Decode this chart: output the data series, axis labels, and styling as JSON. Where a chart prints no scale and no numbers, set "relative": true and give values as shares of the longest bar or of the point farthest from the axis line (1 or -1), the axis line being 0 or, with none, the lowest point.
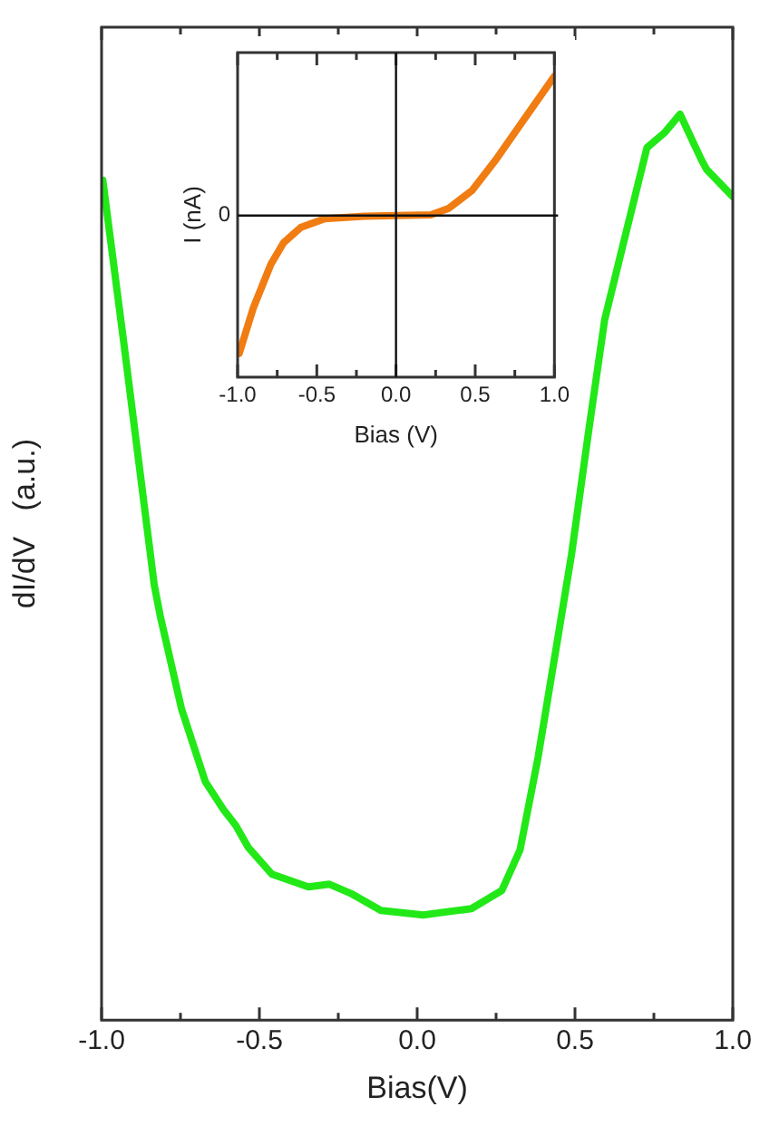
{
  "chart_data": [
    {
      "type": "line",
      "xlabel": "Bias(V)",
      "ylabel": "dI/dV   (a.u.)",
      "relative": true,
      "marker": "none",
      "line_style": "solid",
      "grid": false,
      "legend": false,
      "xlim": [
        -1.0,
        1.0
      ],
      "xticks": [
        {
          "value": -1.0,
          "label": "-1.0"
        },
        {
          "value": -0.75,
          "label": null
        },
        {
          "value": -0.5,
          "label": "-0.5"
        },
        {
          "value": -0.25,
          "label": null
        },
        {
          "value": 0,
          "label": "0.0"
        },
        {
          "value": 0.25,
          "label": null
        },
        {
          "value": 0.5,
          "label": "0.5"
        },
        {
          "value": 0.75,
          "label": null
        },
        {
          "value": 1.0,
          "label": "1.0"
        }
      ],
      "series": [
        {
          "color": "#22e818",
          "x": [
            -0.996,
            -0.929,
            -0.833,
            -0.814,
            -0.747,
            -0.671,
            -0.613,
            -0.575,
            -0.536,
            -0.46,
            -0.345,
            -0.278,
            -0.211,
            -0.115,
            0.019,
            0.172,
            0.268,
            0.326,
            0.383,
            0.441,
            0.489,
            0.546,
            0.594,
            0.651,
            0.728,
            0.785,
            0.833,
            0.9,
            0.917,
            1.0
          ],
          "values": [
            0.927,
            0.746,
            0.48,
            0.446,
            0.344,
            0.263,
            0.232,
            0.215,
            0.191,
            0.161,
            0.147,
            0.15,
            0.14,
            0.121,
            0.116,
            0.123,
            0.143,
            0.188,
            0.29,
            0.412,
            0.514,
            0.657,
            0.773,
            0.854,
            0.963,
            0.98,
            1.0,
            0.95,
            0.939,
            0.909
          ]
        }
      ]
    },
    {
      "type": "line",
      "xlabel": "Bias (V)",
      "ylabel": "I (nA)",
      "relative": true,
      "marker": "none",
      "line_style": "solid",
      "grid": false,
      "legend": false,
      "xlim": [
        -1.0,
        1.0
      ],
      "xticks": [
        {
          "value": -1.0,
          "label": "-1.0"
        },
        {
          "value": -0.75,
          "label": null
        },
        {
          "value": -0.5,
          "label": "-0.5"
        },
        {
          "value": -0.25,
          "label": null
        },
        {
          "value": 0,
          "label": "0.0"
        },
        {
          "value": 0.25,
          "label": null
        },
        {
          "value": 0.5,
          "label": "0.5"
        },
        {
          "value": 0.75,
          "label": null
        },
        {
          "value": 1.0,
          "label": "1.0"
        }
      ],
      "ref_lines": [
        {
          "axis": "x",
          "value": 0
        }
      ],
      "annotations": [
        "0"
      ],
      "series": [
        {
          "color": "#f07c12",
          "x": [
            -0.99,
            -0.9,
            -0.79,
            -0.71,
            -0.6,
            -0.45,
            -0.2,
            0,
            0.22,
            0.33,
            0.48,
            0.63,
            0.82,
            1.0
          ],
          "values": [
            -0.99,
            -0.66,
            -0.35,
            -0.195,
            -0.084,
            -0.022,
            -0.005,
            0,
            0.005,
            0.05,
            0.18,
            0.4,
            0.71,
            1.0
          ]
        }
      ]
    }
  ]
}
